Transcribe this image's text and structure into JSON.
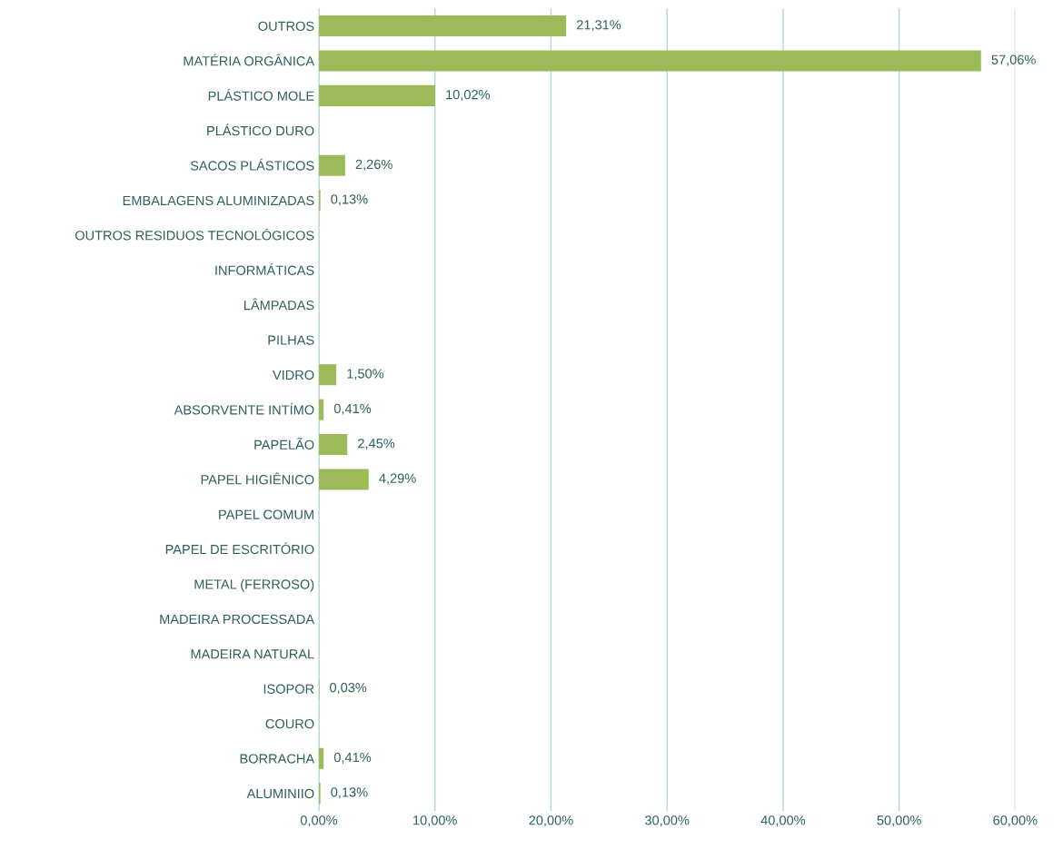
{
  "chart_data": {
    "type": "bar",
    "orientation": "horizontal",
    "categories": [
      "OUTROS",
      "MATÉRIA ORGÂNICA",
      "PLÁSTICO MOLE",
      "PLÁSTICO DURO",
      "SACOS PLÁSTICOS",
      "EMBALAGENS ALUMINIZADAS",
      "OUTROS RESIDUOS TECNOLÓGICOS",
      "INFORMÁTICAS",
      "LÂMPADAS",
      "PILHAS",
      "VIDRO",
      "ABSORVENTE INTÍMO",
      "PAPELÃO",
      "PAPEL HIGIÊNICO",
      "PAPEL COMUM",
      "PAPEL DE ESCRITÓRIO",
      "METAL (FERROSO)",
      "MADEIRA PROCESSADA",
      "MADEIRA NATURAL",
      "ISOPOR",
      "COURO",
      "BORRACHA",
      "ALUMINIIO"
    ],
    "values": [
      21.31,
      57.06,
      10.02,
      0,
      2.26,
      0.13,
      0,
      0,
      0,
      0,
      1.5,
      0.41,
      2.45,
      4.29,
      0,
      0,
      0,
      0,
      0,
      0.03,
      0,
      0.41,
      0.13
    ],
    "value_labels": [
      "21,31%",
      "57,06%",
      "10,02%",
      null,
      "2,26%",
      "0,13%",
      null,
      null,
      null,
      null,
      "1,50%",
      "0,41%",
      "2,45%",
      "4,29%",
      null,
      null,
      null,
      null,
      null,
      "0,03%",
      null,
      "0,41%",
      "0,13%"
    ],
    "color": "#9bbb59",
    "xlim": [
      0,
      60
    ],
    "xticks": [
      {
        "value": 0,
        "label": "0,00%"
      },
      {
        "value": 10,
        "label": "10,00%"
      },
      {
        "value": 20,
        "label": "20,00%"
      },
      {
        "value": 30,
        "label": "30,00%"
      },
      {
        "value": 40,
        "label": "40,00%"
      },
      {
        "value": 50,
        "label": "50,00%"
      },
      {
        "value": 60,
        "label": "60,00%"
      }
    ],
    "grid": "x"
  }
}
